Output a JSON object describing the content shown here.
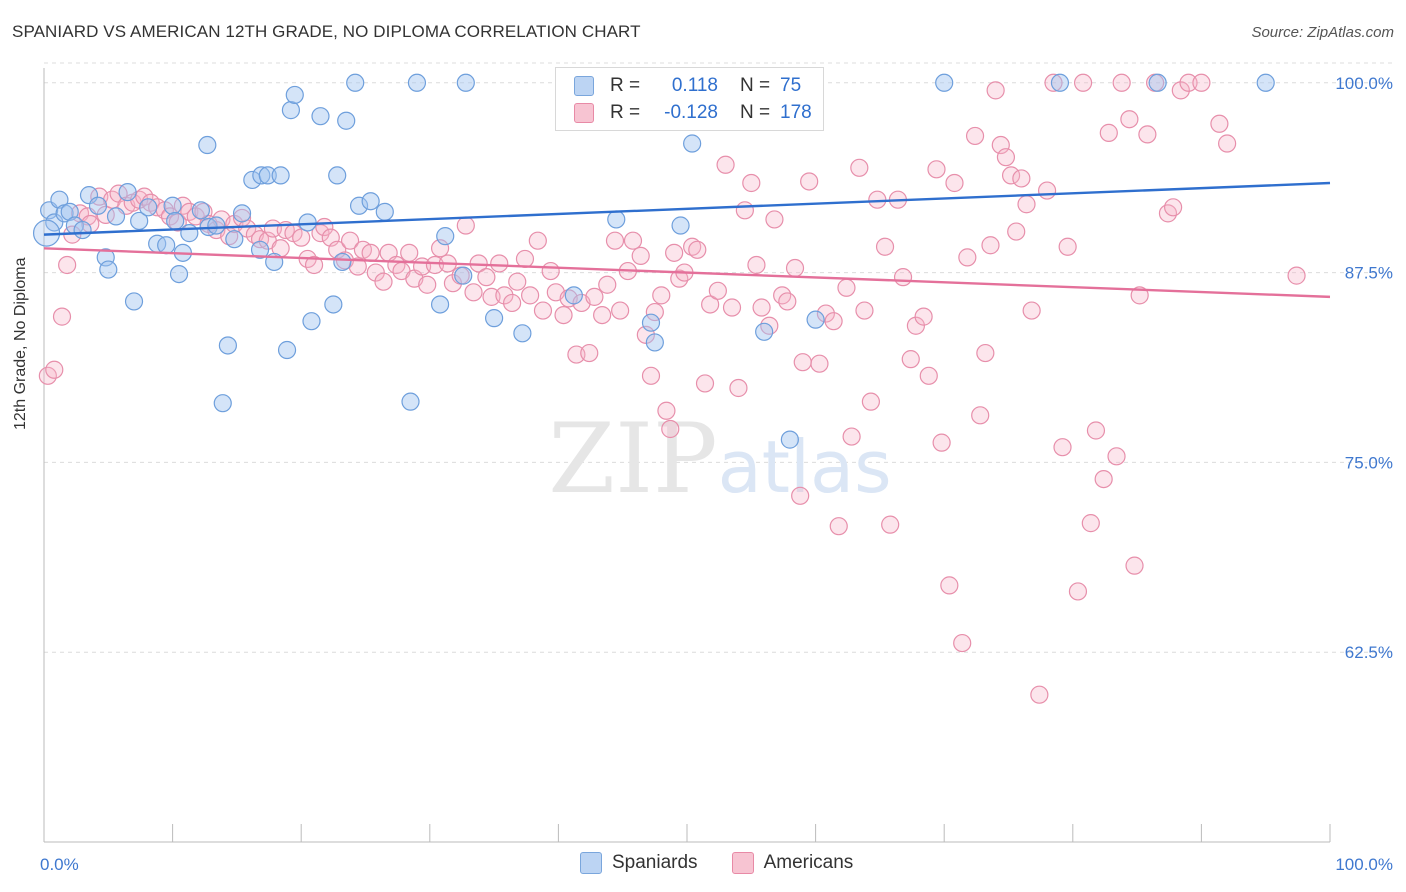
{
  "title": "SPANIARD VS AMERICAN 12TH GRADE, NO DIPLOMA CORRELATION CHART",
  "source": "Source: ZipAtlas.com",
  "watermark": "ZIPatlas",
  "stats": [
    {
      "r_label": "R =",
      "r_value": "0.118",
      "n_label": "N =",
      "n_value": "75"
    },
    {
      "r_label": "R =",
      "r_value": "-0.128",
      "n_label": "N =",
      "n_value": "178"
    }
  ],
  "legend": [
    {
      "label": "Spaniards"
    },
    {
      "label": "Americans"
    }
  ],
  "chart_data": {
    "type": "scatter",
    "title": "SPANIARD VS AMERICAN 12TH GRADE, NO DIPLOMA CORRELATION CHART",
    "xlabel": "",
    "ylabel": "12th Grade, No Diploma",
    "xlim": [
      0,
      100
    ],
    "ylim": [
      50,
      101.5
    ],
    "x_ticks": [
      {
        "value": 0,
        "label": "0.0%"
      },
      {
        "value": 100,
        "label": "100.0%"
      }
    ],
    "y_ticks": [
      {
        "value": 62.5,
        "label": "62.5%"
      },
      {
        "value": 75.0,
        "label": "75.0%"
      },
      {
        "value": 87.5,
        "label": "87.5%"
      },
      {
        "value": 100.0,
        "label": "100.0%"
      }
    ],
    "grid": true,
    "legend_position": "bottom-center",
    "colors": {
      "spaniards": "#7aa6dc",
      "americans": "#e88aa6",
      "spaniards_line": "#2f6fce",
      "americans_line": "#e4709a"
    },
    "series": [
      {
        "name": "Spaniards",
        "trend": {
          "x": [
            0,
            100
          ],
          "y": [
            90.0,
            93.4
          ]
        },
        "points": [
          [
            0.4,
            91.6
          ],
          [
            0.8,
            90.8
          ],
          [
            1.2,
            92.3
          ],
          [
            1.6,
            91.4
          ],
          [
            2.0,
            91.5
          ],
          [
            2.4,
            90.6
          ],
          [
            3.0,
            90.3
          ],
          [
            3.5,
            92.6
          ],
          [
            4.2,
            91.9
          ],
          [
            4.8,
            88.5
          ],
          [
            5.0,
            87.7
          ],
          [
            5.6,
            91.2
          ],
          [
            6.5,
            92.8
          ],
          [
            7.0,
            85.6
          ],
          [
            7.4,
            90.9
          ],
          [
            8.1,
            91.8
          ],
          [
            8.8,
            89.4
          ],
          [
            9.5,
            89.3
          ],
          [
            10.0,
            91.9
          ],
          [
            10.2,
            90.9
          ],
          [
            10.5,
            87.4
          ],
          [
            10.8,
            88.8
          ],
          [
            11.3,
            90.1
          ],
          [
            12.2,
            91.6
          ],
          [
            12.8,
            90.5
          ],
          [
            12.7,
            95.9
          ],
          [
            13.4,
            90.6
          ],
          [
            13.9,
            78.9
          ],
          [
            14.3,
            82.7
          ],
          [
            14.8,
            89.7
          ],
          [
            15.4,
            91.4
          ],
          [
            16.2,
            93.6
          ],
          [
            16.8,
            89.0
          ],
          [
            16.9,
            93.9
          ],
          [
            17.4,
            93.9
          ],
          [
            17.9,
            88.2
          ],
          [
            18.4,
            93.9
          ],
          [
            18.9,
            82.4
          ],
          [
            19.2,
            98.2
          ],
          [
            19.5,
            99.2
          ],
          [
            20.5,
            90.8
          ],
          [
            20.8,
            84.3
          ],
          [
            21.5,
            97.8
          ],
          [
            22.5,
            85.4
          ],
          [
            22.8,
            93.9
          ],
          [
            23.2,
            88.2
          ],
          [
            23.5,
            97.5
          ],
          [
            24.2,
            100.0
          ],
          [
            24.5,
            91.9
          ],
          [
            25.4,
            92.2
          ],
          [
            26.5,
            91.5
          ],
          [
            28.5,
            79.0
          ],
          [
            29.0,
            100.0
          ],
          [
            30.8,
            85.4
          ],
          [
            31.2,
            89.9
          ],
          [
            32.8,
            100.0
          ],
          [
            32.6,
            87.3
          ],
          [
            35.0,
            84.5
          ],
          [
            37.2,
            83.5
          ],
          [
            41.2,
            86.0
          ],
          [
            44.5,
            91.0
          ],
          [
            47.2,
            84.2
          ],
          [
            47.5,
            82.9
          ],
          [
            49.5,
            90.6
          ],
          [
            50.0,
            100.0
          ],
          [
            50.4,
            96.0
          ],
          [
            52.0,
            100.0
          ],
          [
            56.0,
            83.6
          ],
          [
            58.0,
            76.5
          ],
          [
            60.0,
            84.4
          ],
          [
            70.0,
            100.0
          ],
          [
            79.0,
            100.0
          ],
          [
            86.6,
            100.0
          ],
          [
            95.0,
            100.0
          ]
        ]
      },
      {
        "name": "Americans",
        "trend": {
          "x": [
            0,
            100
          ],
          "y": [
            89.1,
            85.9
          ]
        },
        "points": [
          [
            0.3,
            80.7
          ],
          [
            0.8,
            81.1
          ],
          [
            1.4,
            84.6
          ],
          [
            1.8,
            88.0
          ],
          [
            2.2,
            90.0
          ],
          [
            2.8,
            91.4
          ],
          [
            3.4,
            91.2
          ],
          [
            3.6,
            90.7
          ],
          [
            4.3,
            92.5
          ],
          [
            4.8,
            91.3
          ],
          [
            5.3,
            92.3
          ],
          [
            5.8,
            92.7
          ],
          [
            6.4,
            91.9
          ],
          [
            6.9,
            92.1
          ],
          [
            7.4,
            92.3
          ],
          [
            7.8,
            92.5
          ],
          [
            8.3,
            92.1
          ],
          [
            8.8,
            91.8
          ],
          [
            9.4,
            91.6
          ],
          [
            9.8,
            91.2
          ],
          [
            10.4,
            90.8
          ],
          [
            10.8,
            91.9
          ],
          [
            11.3,
            91.5
          ],
          [
            11.8,
            91.2
          ],
          [
            12.4,
            91.5
          ],
          [
            12.8,
            90.7
          ],
          [
            13.4,
            90.3
          ],
          [
            13.8,
            91.0
          ],
          [
            14.4,
            89.9
          ],
          [
            14.8,
            90.7
          ],
          [
            15.4,
            91.1
          ],
          [
            15.8,
            90.4
          ],
          [
            16.4,
            90.0
          ],
          [
            16.8,
            89.7
          ],
          [
            17.4,
            89.6
          ],
          [
            17.8,
            90.4
          ],
          [
            18.4,
            89.1
          ],
          [
            18.8,
            90.3
          ],
          [
            19.4,
            90.1
          ],
          [
            20.0,
            89.8
          ],
          [
            20.5,
            88.4
          ],
          [
            21.0,
            88.0
          ],
          [
            21.5,
            90.1
          ],
          [
            21.8,
            90.5
          ],
          [
            22.3,
            89.8
          ],
          [
            22.8,
            89.0
          ],
          [
            23.4,
            88.3
          ],
          [
            23.8,
            89.6
          ],
          [
            24.4,
            87.9
          ],
          [
            24.8,
            89.0
          ],
          [
            25.4,
            88.8
          ],
          [
            25.8,
            87.5
          ],
          [
            26.4,
            86.9
          ],
          [
            26.8,
            88.8
          ],
          [
            27.4,
            88.0
          ],
          [
            27.8,
            87.6
          ],
          [
            28.4,
            88.8
          ],
          [
            28.8,
            87.1
          ],
          [
            29.4,
            87.9
          ],
          [
            29.8,
            86.7
          ],
          [
            30.4,
            88.0
          ],
          [
            30.8,
            89.1
          ],
          [
            31.4,
            88.1
          ],
          [
            31.8,
            86.8
          ],
          [
            32.4,
            87.3
          ],
          [
            32.8,
            90.6
          ],
          [
            33.4,
            86.2
          ],
          [
            33.8,
            88.1
          ],
          [
            34.4,
            87.2
          ],
          [
            34.8,
            85.9
          ],
          [
            35.4,
            88.1
          ],
          [
            35.8,
            86.0
          ],
          [
            36.4,
            85.5
          ],
          [
            36.8,
            86.9
          ],
          [
            37.4,
            88.4
          ],
          [
            37.8,
            86.0
          ],
          [
            38.4,
            89.6
          ],
          [
            38.8,
            85.0
          ],
          [
            39.4,
            87.6
          ],
          [
            39.8,
            86.2
          ],
          [
            40.4,
            84.7
          ],
          [
            40.8,
            85.8
          ],
          [
            41.4,
            82.1
          ],
          [
            41.8,
            85.5
          ],
          [
            42.4,
            82.2
          ],
          [
            42.8,
            85.9
          ],
          [
            43.4,
            84.7
          ],
          [
            43.8,
            86.7
          ],
          [
            44.4,
            89.6
          ],
          [
            44.8,
            85.0
          ],
          [
            45.4,
            87.6
          ],
          [
            45.8,
            89.6
          ],
          [
            46.4,
            88.6
          ],
          [
            46.8,
            83.4
          ],
          [
            47.2,
            80.7
          ],
          [
            47.5,
            84.9
          ],
          [
            48.0,
            86.0
          ],
          [
            48.4,
            78.4
          ],
          [
            48.7,
            77.2
          ],
          [
            49.0,
            88.8
          ],
          [
            49.4,
            87.1
          ],
          [
            49.8,
            87.5
          ],
          [
            50.4,
            89.2
          ],
          [
            50.8,
            89.0
          ],
          [
            51.4,
            80.2
          ],
          [
            51.8,
            85.4
          ],
          [
            52.4,
            86.3
          ],
          [
            53.0,
            94.6
          ],
          [
            53.5,
            85.2
          ],
          [
            54.0,
            79.9
          ],
          [
            54.5,
            91.6
          ],
          [
            55.0,
            93.4
          ],
          [
            55.4,
            88.0
          ],
          [
            55.8,
            85.2
          ],
          [
            56.4,
            84.0
          ],
          [
            56.8,
            91.0
          ],
          [
            57.4,
            86.0
          ],
          [
            57.8,
            85.6
          ],
          [
            58.4,
            87.8
          ],
          [
            58.8,
            72.8
          ],
          [
            59.0,
            81.6
          ],
          [
            59.5,
            93.5
          ],
          [
            60.3,
            81.5
          ],
          [
            60.8,
            84.8
          ],
          [
            61.4,
            84.3
          ],
          [
            61.8,
            70.8
          ],
          [
            62.4,
            86.5
          ],
          [
            62.8,
            76.7
          ],
          [
            63.4,
            94.4
          ],
          [
            63.8,
            85.0
          ],
          [
            64.3,
            79.0
          ],
          [
            64.8,
            92.3
          ],
          [
            65.4,
            89.2
          ],
          [
            65.8,
            70.9
          ],
          [
            66.4,
            92.3
          ],
          [
            66.8,
            87.2
          ],
          [
            67.4,
            81.8
          ],
          [
            67.8,
            84.0
          ],
          [
            68.4,
            84.6
          ],
          [
            68.8,
            80.7
          ],
          [
            69.4,
            94.3
          ],
          [
            69.8,
            76.3
          ],
          [
            70.4,
            66.9
          ],
          [
            70.8,
            93.4
          ],
          [
            71.4,
            63.1
          ],
          [
            71.8,
            88.5
          ],
          [
            72.4,
            96.5
          ],
          [
            72.8,
            78.1
          ],
          [
            73.2,
            82.2
          ],
          [
            73.6,
            89.3
          ],
          [
            74.0,
            99.5
          ],
          [
            74.4,
            95.9
          ],
          [
            74.8,
            95.1
          ],
          [
            75.2,
            93.9
          ],
          [
            75.6,
            90.2
          ],
          [
            76.0,
            93.7
          ],
          [
            76.4,
            92.0
          ],
          [
            76.8,
            85.0
          ],
          [
            77.4,
            59.7
          ],
          [
            78.0,
            92.9
          ],
          [
            78.5,
            100.0
          ],
          [
            79.2,
            76.0
          ],
          [
            79.6,
            89.2
          ],
          [
            80.4,
            66.5
          ],
          [
            80.8,
            100.0
          ],
          [
            81.4,
            71.0
          ],
          [
            81.8,
            77.1
          ],
          [
            82.4,
            73.9
          ],
          [
            82.8,
            96.7
          ],
          [
            83.4,
            75.4
          ],
          [
            83.8,
            100.0
          ],
          [
            84.4,
            97.6
          ],
          [
            84.8,
            68.2
          ],
          [
            85.2,
            86.0
          ],
          [
            85.8,
            96.6
          ],
          [
            86.4,
            100.0
          ],
          [
            87.4,
            91.4
          ],
          [
            87.8,
            91.8
          ],
          [
            88.4,
            99.5
          ],
          [
            89.0,
            100.0
          ],
          [
            90.0,
            100.0
          ],
          [
            91.4,
            97.3
          ],
          [
            92.0,
            96.0
          ],
          [
            97.4,
            87.3
          ]
        ]
      }
    ]
  }
}
